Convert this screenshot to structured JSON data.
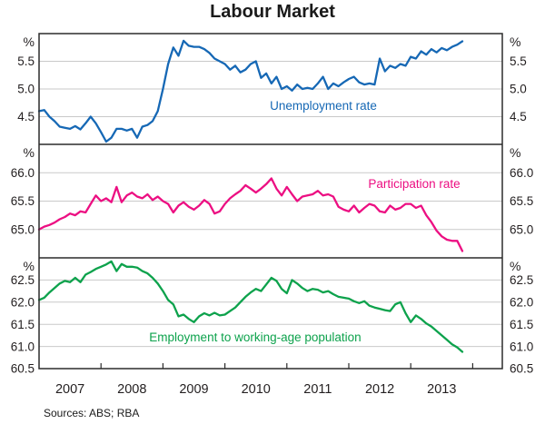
{
  "title": "Labour Market",
  "source": "Sources: ABS; RBA",
  "x_axis": {
    "year_labels": [
      "2007",
      "2008",
      "2009",
      "2010",
      "2011",
      "2012",
      "2013"
    ]
  },
  "chart_data": [
    {
      "type": "line",
      "series_label": "Unemployment rate",
      "color": "#1668b5",
      "unit": "%",
      "ylim": [
        4.0,
        6.0
      ],
      "yticks": [
        5.5,
        5.0,
        4.5
      ],
      "x_start": 2007,
      "x_step_months": 1,
      "values": [
        4.6,
        4.62,
        4.5,
        4.42,
        4.32,
        4.3,
        4.28,
        4.33,
        4.27,
        4.38,
        4.5,
        4.38,
        4.22,
        4.05,
        4.12,
        4.28,
        4.28,
        4.25,
        4.28,
        4.12,
        4.32,
        4.35,
        4.42,
        4.6,
        5.0,
        5.45,
        5.75,
        5.6,
        5.87,
        5.78,
        5.76,
        5.76,
        5.72,
        5.65,
        5.55,
        5.5,
        5.45,
        5.35,
        5.42,
        5.3,
        5.35,
        5.45,
        5.5,
        5.2,
        5.28,
        5.1,
        5.22,
        5.0,
        5.05,
        4.97,
        5.08,
        5.0,
        5.02,
        5.0,
        5.1,
        5.22,
        5.0,
        5.1,
        5.05,
        5.12,
        5.18,
        5.22,
        5.12,
        5.08,
        5.1,
        5.08,
        5.55,
        5.32,
        5.42,
        5.38,
        5.45,
        5.42,
        5.58,
        5.55,
        5.68,
        5.62,
        5.72,
        5.66,
        5.74,
        5.7,
        5.76,
        5.8,
        5.86
      ]
    },
    {
      "type": "line",
      "series_label": "Participation rate",
      "color": "#ec0f82",
      "unit": "%",
      "ylim": [
        64.5,
        66.5
      ],
      "yticks": [
        66.0,
        65.5,
        65.0
      ],
      "x_start": 2007,
      "x_step_months": 1,
      "values": [
        65.0,
        65.05,
        65.08,
        65.12,
        65.18,
        65.22,
        65.28,
        65.25,
        65.32,
        65.3,
        65.45,
        65.6,
        65.5,
        65.55,
        65.48,
        65.75,
        65.48,
        65.6,
        65.65,
        65.58,
        65.55,
        65.62,
        65.52,
        65.58,
        65.5,
        65.45,
        65.3,
        65.42,
        65.48,
        65.4,
        65.35,
        65.42,
        65.52,
        65.45,
        65.28,
        65.32,
        65.45,
        65.55,
        65.62,
        65.68,
        65.78,
        65.72,
        65.65,
        65.72,
        65.8,
        65.9,
        65.72,
        65.6,
        65.75,
        65.62,
        65.5,
        65.58,
        65.6,
        65.62,
        65.68,
        65.6,
        65.62,
        65.58,
        65.4,
        65.35,
        65.32,
        65.42,
        65.3,
        65.38,
        65.45,
        65.42,
        65.32,
        65.3,
        65.42,
        65.35,
        65.38,
        65.45,
        65.45,
        65.38,
        65.42,
        65.25,
        65.13,
        64.98,
        64.88,
        64.82,
        64.8,
        64.8,
        64.62
      ]
    },
    {
      "type": "line",
      "series_label": "Employment to working-age population",
      "color": "#0da24c",
      "unit": "%",
      "ylim": [
        60.5,
        63.0
      ],
      "yticks": [
        62.5,
        62.0,
        61.5,
        61.0,
        60.5
      ],
      "x_start": 2007,
      "x_step_months": 1,
      "values": [
        62.05,
        62.1,
        62.22,
        62.32,
        62.42,
        62.48,
        62.45,
        62.55,
        62.45,
        62.62,
        62.68,
        62.75,
        62.8,
        62.85,
        62.92,
        62.7,
        62.86,
        62.8,
        62.8,
        62.78,
        62.7,
        62.65,
        62.55,
        62.42,
        62.25,
        62.05,
        61.95,
        61.68,
        61.72,
        61.62,
        61.55,
        61.68,
        61.75,
        61.7,
        61.76,
        61.7,
        61.72,
        61.8,
        61.88,
        62.0,
        62.12,
        62.22,
        62.3,
        62.25,
        62.4,
        62.55,
        62.48,
        62.3,
        62.2,
        62.5,
        62.42,
        62.32,
        62.25,
        62.3,
        62.28,
        62.22,
        62.25,
        62.18,
        62.12,
        62.1,
        62.08,
        62.02,
        61.98,
        62.02,
        61.92,
        61.88,
        61.85,
        61.82,
        61.8,
        61.95,
        62.0,
        61.75,
        61.55,
        61.7,
        61.62,
        61.52,
        61.45,
        61.35,
        61.25,
        61.15,
        61.05,
        60.98,
        60.88
      ]
    }
  ]
}
